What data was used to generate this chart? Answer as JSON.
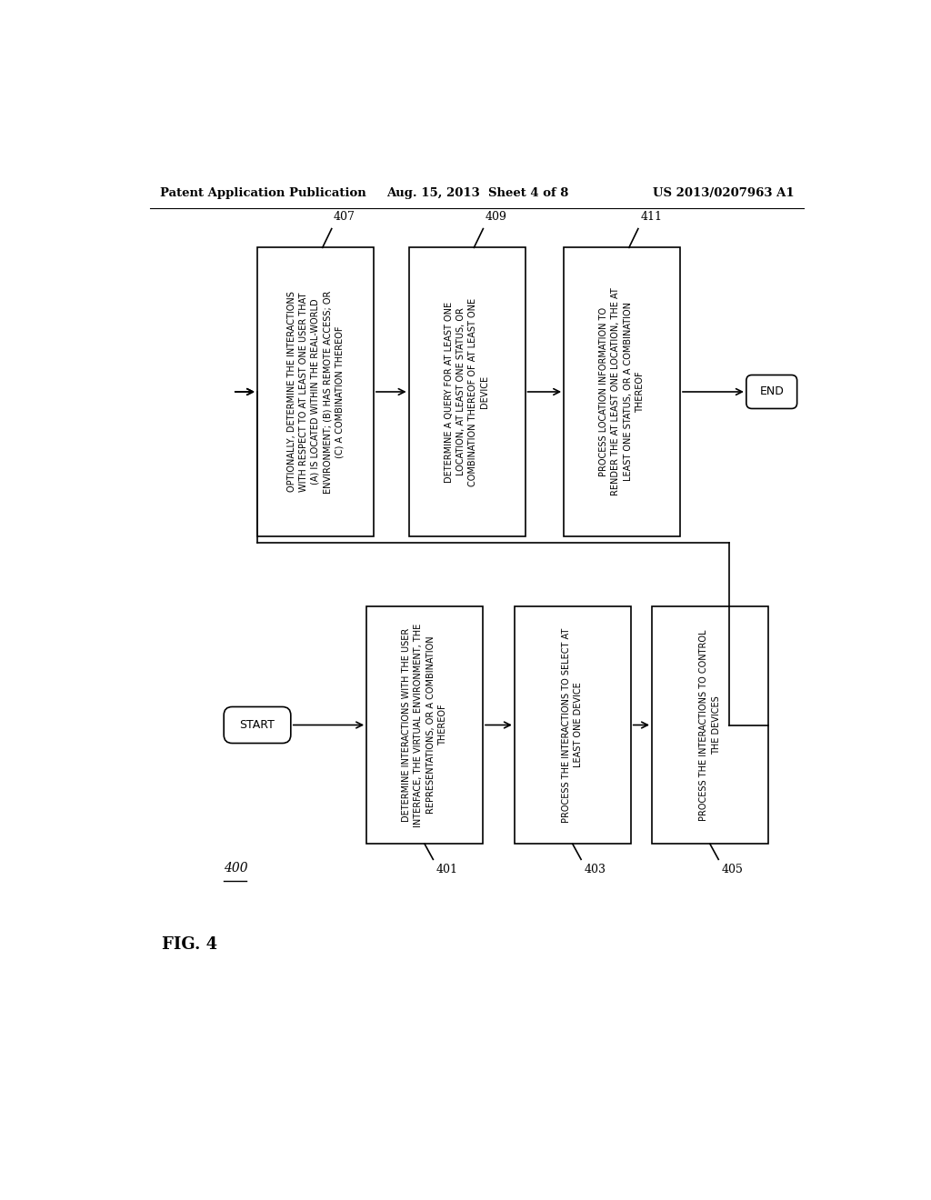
{
  "background_color": "#ffffff",
  "header_left": "Patent Application Publication",
  "header_mid": "Aug. 15, 2013  Sheet 4 of 8",
  "header_right": "US 2013/0207963 A1",
  "figure_label": "FIG. 4",
  "diagram_number": "400",
  "top_boxes": [
    {
      "label": "407",
      "text": "OPTIONALLY, DETERMINE THE INTERACTIONS\nWITH RESPECT TO AT LEAST ONE USER THAT\n(A) IS LOCATED WITHIN THE REAL-WORLD\nENVIRONMENT; (B) HAS REMOTE ACCESS; OR\n(C) A COMBINATION THEREOF"
    },
    {
      "label": "409",
      "text": "DETERMINE A QUERY FOR AT LEAST ONE\nLOCATION, AT LEAST ONE STATUS, OR\nCOMBINATION THEREOF OF AT LEAST ONE\nDEVICE"
    },
    {
      "label": "411",
      "text": "PROCESS LOCATION INFORMATION TO\nRENDER THE AT LEAST ONE LOCATION, THE AT\nLEAST ONE STATUS, OR A COMBINATION\nTHEREOF"
    }
  ],
  "end_label": "END",
  "start_label": "START",
  "bottom_boxes": [
    {
      "label": "401",
      "text": "DETERMINE INTERACTIONS WITH THE USER\nINTERFACE, THE VIRTUAL ENVIRONMENT, THE\nREPRESENTATIONS, OR A COMBINATION\nTHEREOF"
    },
    {
      "label": "403",
      "text": "PROCESS THE INTERACTIONS TO SELECT AT\nLEAST ONE DEVICE"
    },
    {
      "label": "405",
      "text": "PROCESS THE INTERACTIONS TO CONTROL\nTHE DEVICES"
    }
  ]
}
